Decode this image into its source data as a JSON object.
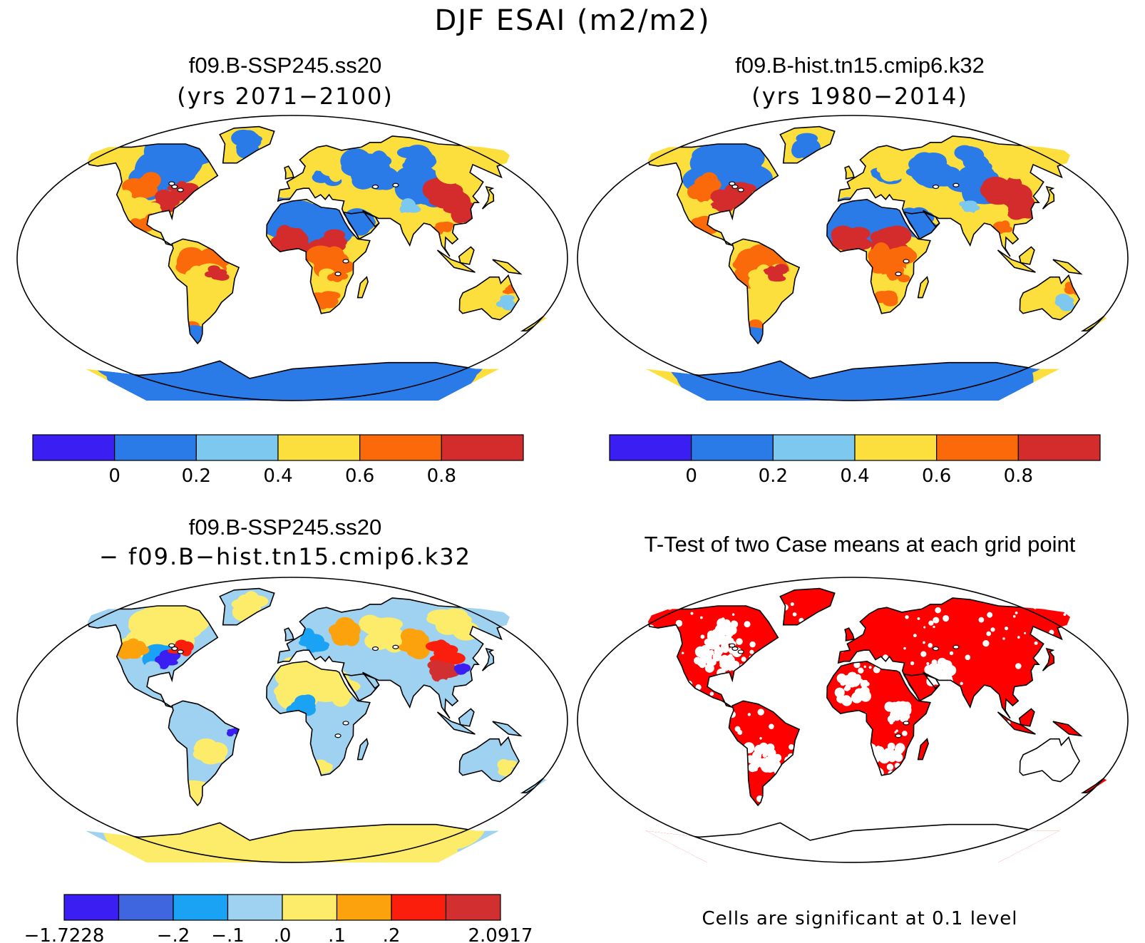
{
  "figure_title": "DJF ESAI (m2/m2)",
  "panels": {
    "top_left": {
      "title": "f09.B-SSP245.ss20",
      "subtitle": "(yrs 2071−2100)",
      "fill_style": "case_future"
    },
    "top_right": {
      "title": "f09.B-hist.tn15.cmip6.k32",
      "subtitle": "(yrs 1980−2014)",
      "fill_style": "case_hist"
    },
    "bottom_left": {
      "title": "f09.B-SSP245.ss20",
      "subtitle": "− f09.B−hist.tn15.cmip6.k32",
      "fill_style": "difference"
    },
    "bottom_right": {
      "title": "T-Test of two Case means at each grid point",
      "note": "Cells are significant at 0.1 level",
      "fill_style": "significance"
    }
  },
  "colorbars": {
    "case": {
      "colors": [
        "#3b1ef2",
        "#2a7ae8",
        "#7cc8ee",
        "#fcdf3c",
        "#fb6a0a",
        "#d42c2c"
      ],
      "tick_labels": [
        "0",
        "0.2",
        "0.4",
        "0.6",
        "0.8"
      ]
    },
    "diff": {
      "colors": [
        "#3b1ef2",
        "#3f66df",
        "#1aa3f5",
        "#9ed2f0",
        "#fdeb6a",
        "#fca20c",
        "#fb1e0c",
        "#d23030"
      ],
      "tick_labels": [
        "−1.7228",
        "−.2",
        "−.1",
        ".0",
        ".1",
        ".2",
        "2.0917"
      ]
    }
  },
  "colors": {
    "ocean": "#ffffff",
    "coast": "#000000",
    "significant": "#ff0000",
    "sea_ice_case": "#2a7ae8",
    "sea_ice_diff": "#fdeb6a"
  }
}
